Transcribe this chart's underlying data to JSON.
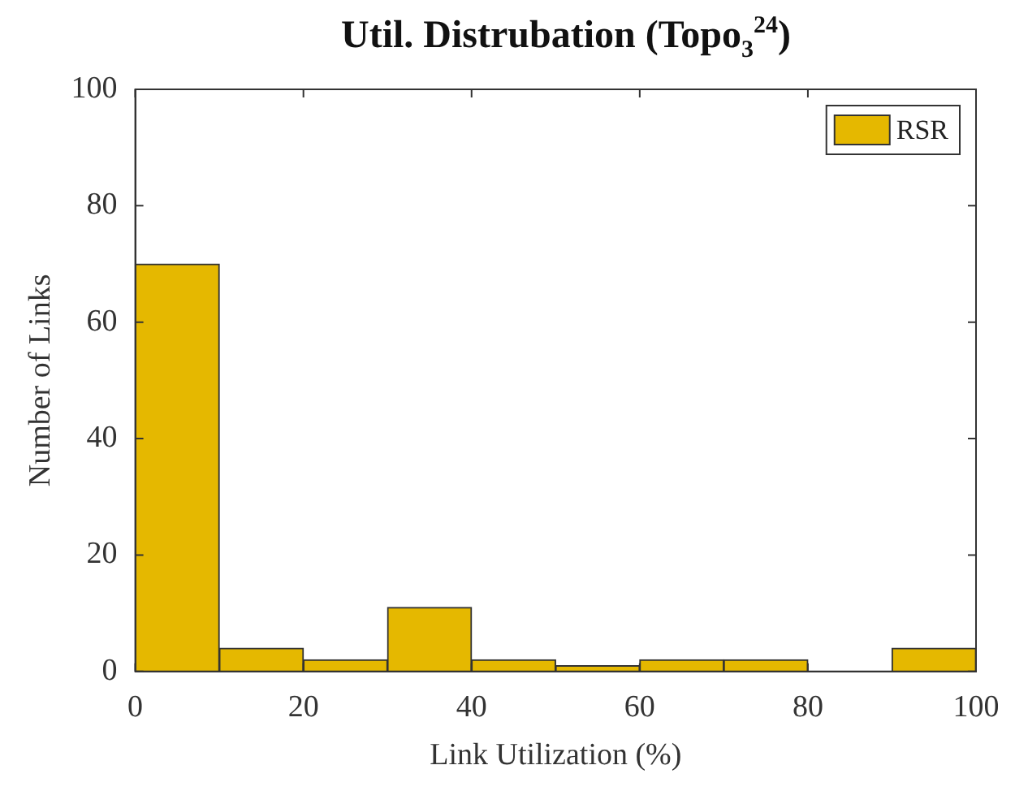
{
  "chart_data": {
    "type": "histogram",
    "title": "Util. Distrubation (Topo$_{3}$$^{24}$)",
    "xlabel": "Link Utilization (%)",
    "ylabel": "Number of Links",
    "bins": [
      0,
      10,
      20,
      30,
      40,
      50,
      60,
      70,
      80,
      90,
      100
    ],
    "series": [
      {
        "name": "RSR",
        "color": "#e5b800",
        "values": [
          70,
          4,
          2,
          11,
          2,
          1,
          2,
          2,
          0,
          4
        ]
      }
    ],
    "xlim": [
      0,
      100
    ],
    "xticks": [
      0,
      20,
      40,
      60,
      80,
      100
    ],
    "ylim": [
      0,
      100
    ],
    "yticks": [
      0,
      20,
      40,
      60,
      80,
      100
    ],
    "legend": "top right"
  }
}
